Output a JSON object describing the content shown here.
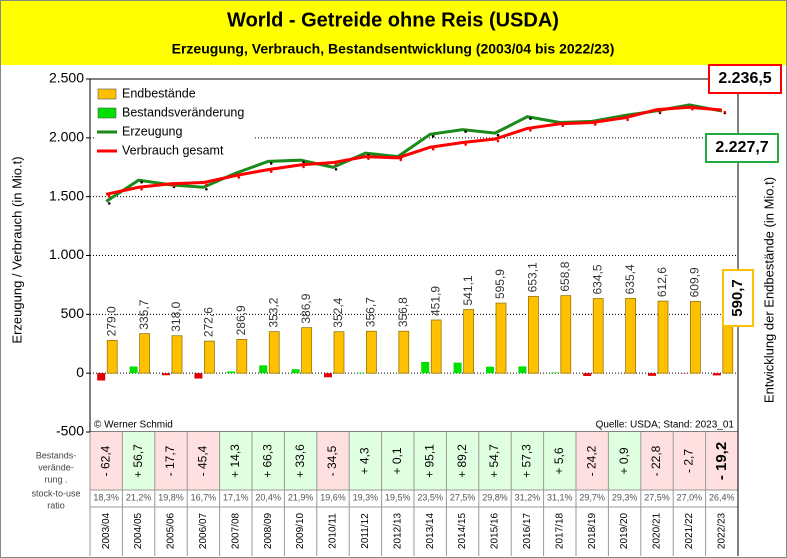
{
  "chart_data": {
    "type": "bar_line",
    "title": "World  - Getreide ohne Reis (USDA)",
    "subtitle": "Erzeugung, Verbrauch, Bestandsentwicklung (2003/04 bis 2022/23)",
    "ylabel": "Erzeugung / Verbrauch  (in Mio.t)",
    "y2label": "Entwicklung der Endbestände (in Mio.t)",
    "categories": [
      "2003/04",
      "2004/05",
      "2005/06",
      "2006/07",
      "2007/08",
      "2008/09",
      "2009/10",
      "2010/11",
      "2011/12",
      "2012/13",
      "2013/14",
      "2014/15",
      "2015/16",
      "2016/17",
      "2017/18",
      "2018/19",
      "2019/20",
      "2020/21",
      "2021/22",
      "2022/23"
    ],
    "ylim": [
      -500,
      2500
    ],
    "yticks": [
      -500,
      0,
      500,
      {
        "value": 1000,
        "label": "1.000"
      },
      {
        "value": 1500,
        "label": "1.500"
      },
      {
        "value": 2000,
        "label": "2.000"
      },
      {
        "value": 2500,
        "label": "2.500"
      }
    ],
    "grid": true,
    "legend": "top-left",
    "series": [
      {
        "name": "Endbestände",
        "kind": "bar",
        "color": "#ffc000",
        "values": [
          279.0,
          335.7,
          318.0,
          272.6,
          286.9,
          353.2,
          386.9,
          352.4,
          356.7,
          356.8,
          451.9,
          541.1,
          595.9,
          653.1,
          658.8,
          634.5,
          635.4,
          612.6,
          609.9,
          590.7
        ],
        "value_labels": [
          "279,0",
          "335,7",
          "318,0",
          "272,6",
          "286,9",
          "353,2",
          "386,9",
          "352,4",
          "356,7",
          "356,8",
          "451,9",
          "541,1",
          "595,9",
          "653,1",
          "658,8",
          "634,5",
          "635,4",
          "612,6",
          "609,9",
          "590,7"
        ]
      },
      {
        "name": "Bestandsveränderung",
        "kind": "bar",
        "color": "#00e000",
        "negative_color": "#e00000",
        "values": [
          -62.4,
          56.7,
          -17.7,
          -45.4,
          14.3,
          66.3,
          33.6,
          -34.5,
          4.3,
          0.1,
          95.1,
          89.2,
          54.7,
          57.3,
          5.6,
          -24.2,
          0.9,
          -22.8,
          -2.7,
          -19.2
        ],
        "value_labels": [
          "- 62,4",
          "+ 56,7",
          "- 17,7",
          "- 45,4",
          "+ 14,3",
          "+ 66,3",
          "+ 33,6",
          "- 34,5",
          "+ 4,3",
          "+ 0,1",
          "+ 95,1",
          "+ 89,2",
          "+ 54,7",
          "+ 57,3",
          "+ 5,6",
          "- 24,2",
          "+ 0,9",
          "- 22,8",
          "- 2,7",
          "- 19,2"
        ]
      },
      {
        "name": "Erzeugung",
        "kind": "line",
        "color": "#1a8a1a",
        "values": [
          1460,
          1640,
          1600,
          1580,
          1700,
          1800,
          1810,
          1750,
          1870,
          1840,
          2030,
          2070,
          2040,
          2180,
          2130,
          2140,
          2190,
          2230,
          2280,
          2227.7
        ]
      },
      {
        "name": "Verbrauch gesamt",
        "kind": "line",
        "color": "#ff0000",
        "values": [
          1520,
          1580,
          1610,
          1620,
          1680,
          1730,
          1770,
          1790,
          1840,
          1830,
          1920,
          1960,
          1990,
          2080,
          2120,
          2130,
          2170,
          2240,
          2260,
          2236.5
        ]
      }
    ],
    "row_labels": [
      [
        "Bestands-",
        "verände-",
        "rung ."
      ],
      [
        "stock-to-use",
        "ratio"
      ]
    ],
    "stock_to_use": [
      "18,3%",
      "21,2%",
      "19,8%",
      "16,7%",
      "17,1%",
      "20,4%",
      "21,9%",
      "19,6%",
      "19,3%",
      "19,5%",
      "23,5%",
      "27,5%",
      "29,8%",
      "31,2%",
      "31,1%",
      "29,7%",
      "29,3%",
      "27,5%",
      "27,0%",
      "26,4%"
    ],
    "annotations": [
      "2.236,5",
      "2.227,7",
      "© Werner Schmid",
      "Quelle: USDA; Stand: 2023_01"
    ]
  }
}
